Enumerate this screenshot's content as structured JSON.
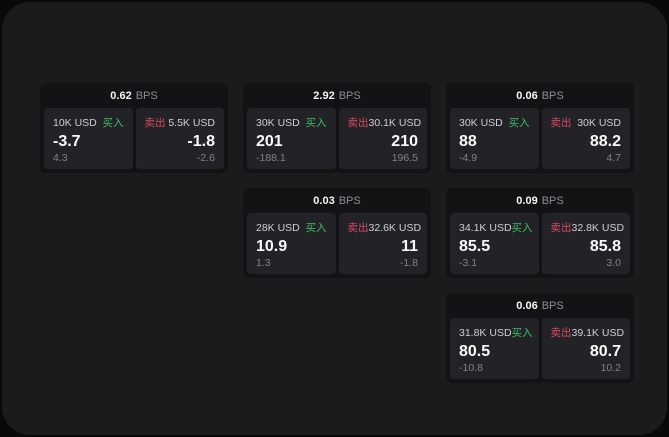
{
  "labels": {
    "bps_unit": "BPS",
    "buy": "买入",
    "sell": "卖出"
  },
  "colors": {
    "buy": "#3ebd66",
    "sell": "#d84a63",
    "surface": "#1b1b1e",
    "card": "#131315",
    "side_panel": "#232327",
    "page": "#09090a"
  },
  "cards": [
    {
      "bps": "0.62",
      "buy": {
        "amount": "10K USD",
        "price": "-3.7",
        "delta": "4.3"
      },
      "sell": {
        "amount": "5.5K USD",
        "price": "-1.8",
        "delta": "-2.6"
      }
    },
    {
      "bps": "2.92",
      "buy": {
        "amount": "30K USD",
        "price": "201",
        "delta": "-188.1"
      },
      "sell": {
        "amount": "30.1K USD",
        "price": "210",
        "delta": "196.5"
      }
    },
    {
      "bps": "0.06",
      "buy": {
        "amount": "30K USD",
        "price": "88",
        "delta": "-4.9"
      },
      "sell": {
        "amount": "30K USD",
        "price": "88.2",
        "delta": "4.7"
      }
    },
    {
      "bps": "0.03",
      "buy": {
        "amount": "28K USD",
        "price": "10.9",
        "delta": "1.3"
      },
      "sell": {
        "amount": "32.6K USD",
        "price": "11",
        "delta": "-1.8"
      }
    },
    {
      "bps": "0.09",
      "buy": {
        "amount": "34.1K USD",
        "price": "85.5",
        "delta": "-3.1"
      },
      "sell": {
        "amount": "32.8K USD",
        "price": "85.8",
        "delta": "3.0"
      }
    },
    {
      "bps": "0.06",
      "buy": {
        "amount": "31.8K USD",
        "price": "80.5",
        "delta": "-10.8"
      },
      "sell": {
        "amount": "39.1K USD",
        "price": "80.7",
        "delta": "10.2"
      }
    }
  ]
}
